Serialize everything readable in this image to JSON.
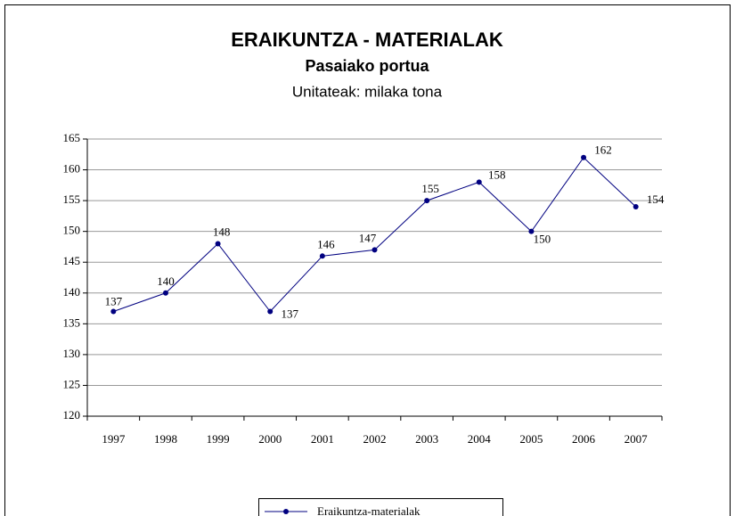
{
  "chart_data": {
    "type": "line",
    "title": "ERAIKUNTZA - MATERIALAK",
    "subtitle": "Pasaiako portua",
    "unit_label": "Unitateak: milaka tona",
    "categories": [
      "1997",
      "1998",
      "1999",
      "2000",
      "2001",
      "2002",
      "2003",
      "2004",
      "2005",
      "2006",
      "2007"
    ],
    "series": [
      {
        "name": "Eraikuntza-materialak",
        "color": "#000080",
        "values": [
          137,
          140,
          148,
          137,
          146,
          147,
          155,
          158,
          150,
          162,
          154
        ]
      }
    ],
    "ylim": [
      120,
      165
    ],
    "yticks": [
      120,
      125,
      130,
      135,
      140,
      145,
      150,
      155,
      160,
      165
    ],
    "grid": true,
    "legend": "bottom"
  }
}
